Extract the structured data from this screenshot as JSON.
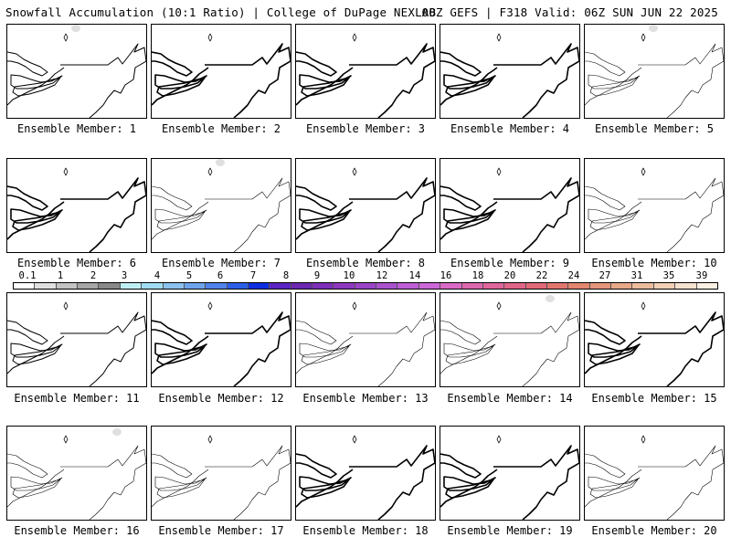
{
  "header": {
    "title": "Snowfall Accumulation (10:1 Ratio) | College of DuPage NEXLAB",
    "run_info": "00Z GEFS | F318 Valid: 06Z SUN JUN 22 2025"
  },
  "members": [
    {
      "label": "Ensemble Member: 1",
      "line_weight": "normal",
      "snow": true
    },
    {
      "label": "Ensemble Member: 2",
      "line_weight": "bold",
      "snow": false
    },
    {
      "label": "Ensemble Member: 3",
      "line_weight": "bold",
      "snow": false
    },
    {
      "label": "Ensemble Member: 4",
      "line_weight": "bold",
      "snow": false
    },
    {
      "label": "Ensemble Member: 5",
      "line_weight": "light",
      "snow": true
    },
    {
      "label": "Ensemble Member: 6",
      "line_weight": "bold",
      "snow": false
    },
    {
      "label": "Ensemble Member: 7",
      "line_weight": "light",
      "snow": true
    },
    {
      "label": "Ensemble Member: 8",
      "line_weight": "bold",
      "snow": false
    },
    {
      "label": "Ensemble Member: 9",
      "line_weight": "bold",
      "snow": false
    },
    {
      "label": "Ensemble Member: 10",
      "line_weight": "light",
      "snow": false
    },
    {
      "label": "Ensemble Member: 11",
      "line_weight": "normal",
      "snow": false
    },
    {
      "label": "Ensemble Member: 12",
      "line_weight": "bold",
      "snow": false
    },
    {
      "label": "Ensemble Member: 13",
      "line_weight": "light",
      "snow": false
    },
    {
      "label": "Ensemble Member: 14",
      "line_weight": "light",
      "snow": true
    },
    {
      "label": "Ensemble Member: 15",
      "line_weight": "bold",
      "snow": false
    },
    {
      "label": "Ensemble Member: 16",
      "line_weight": "light",
      "snow": true
    },
    {
      "label": "Ensemble Member: 17",
      "line_weight": "light",
      "snow": false
    },
    {
      "label": "Ensemble Member: 18",
      "line_weight": "bold",
      "snow": false
    },
    {
      "label": "Ensemble Member: 19",
      "line_weight": "bold",
      "snow": false
    },
    {
      "label": "Ensemble Member: 20",
      "line_weight": "light",
      "snow": false
    }
  ],
  "colorbar": {
    "labels": [
      "0.1",
      "1",
      "2",
      "3",
      "4",
      "5",
      "6",
      "7",
      "8",
      "9",
      "10",
      "12",
      "14",
      "16",
      "18",
      "20",
      "22",
      "24",
      "27",
      "31",
      "35",
      "39"
    ],
    "colors": [
      "#ffffff",
      "#e0e0e0",
      "#c4c4c4",
      "#a6a6a6",
      "#888888",
      "#bfeff5",
      "#9fdcf2",
      "#8cc2f0",
      "#6ea4ec",
      "#4f82ea",
      "#2b5fe8",
      "#0c2ee0",
      "#5b25c2",
      "#6d28b0",
      "#7e2fb8",
      "#8e38c0",
      "#9c44c8",
      "#ab52ce",
      "#bd5ed6",
      "#cd68d8",
      "#d96ac6",
      "#dc68b0",
      "#de669c",
      "#df6688",
      "#e06a78",
      "#e0776f",
      "#e2866f",
      "#e4967a",
      "#e8a888",
      "#ecbc9e",
      "#f2d0b6",
      "#f7e2cf",
      "#fbf0e4"
    ]
  }
}
